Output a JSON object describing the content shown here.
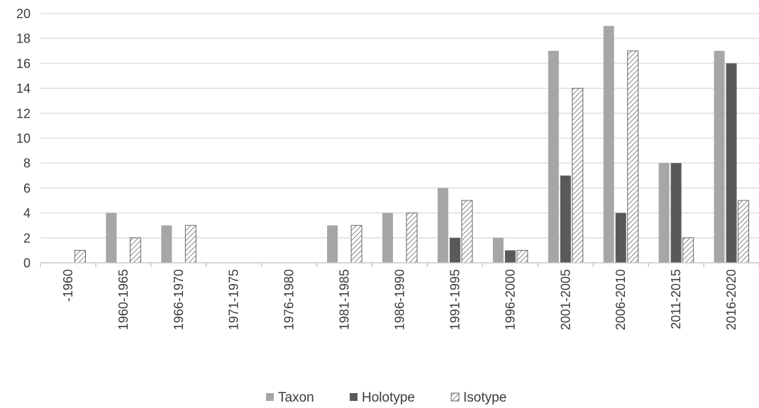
{
  "colors": {
    "taxon": "#a6a6a6",
    "holotype": "#595959",
    "isotype_stroke": "#666666",
    "grid": "#d9d9d9",
    "axis": "#bfbfbf",
    "text": "#3a3a3a"
  },
  "legend": {
    "taxon": "Taxon",
    "holotype": "Holotype",
    "isotype": "Isotype"
  },
  "chart_data": {
    "type": "bar",
    "categories": [
      "-1960",
      "1960-1965",
      "1966-1970",
      "1971-1975",
      "1976-1980",
      "1981-1985",
      "1986-1990",
      "1991-1995",
      "1996-2000",
      "2001-2005",
      "2006-2010",
      "2011-2015",
      "2016-2020"
    ],
    "series": [
      {
        "name": "Taxon",
        "values": [
          0,
          4,
          3,
          0,
          0,
          3,
          4,
          6,
          2,
          17,
          19,
          8,
          17
        ]
      },
      {
        "name": "Holotype",
        "values": [
          0,
          0,
          0,
          0,
          0,
          0,
          0,
          2,
          1,
          7,
          4,
          8,
          16
        ]
      },
      {
        "name": "Isotype",
        "values": [
          1,
          2,
          3,
          0,
          0,
          3,
          4,
          5,
          1,
          14,
          17,
          2,
          5
        ]
      }
    ],
    "title": "",
    "xlabel": "",
    "ylabel": "",
    "ylim": [
      0,
      20
    ],
    "yticks": [
      "0",
      "2",
      "4",
      "6",
      "8",
      "10",
      "12",
      "14",
      "16",
      "18",
      "20"
    ],
    "grid": true,
    "legend_position": "bottom"
  }
}
